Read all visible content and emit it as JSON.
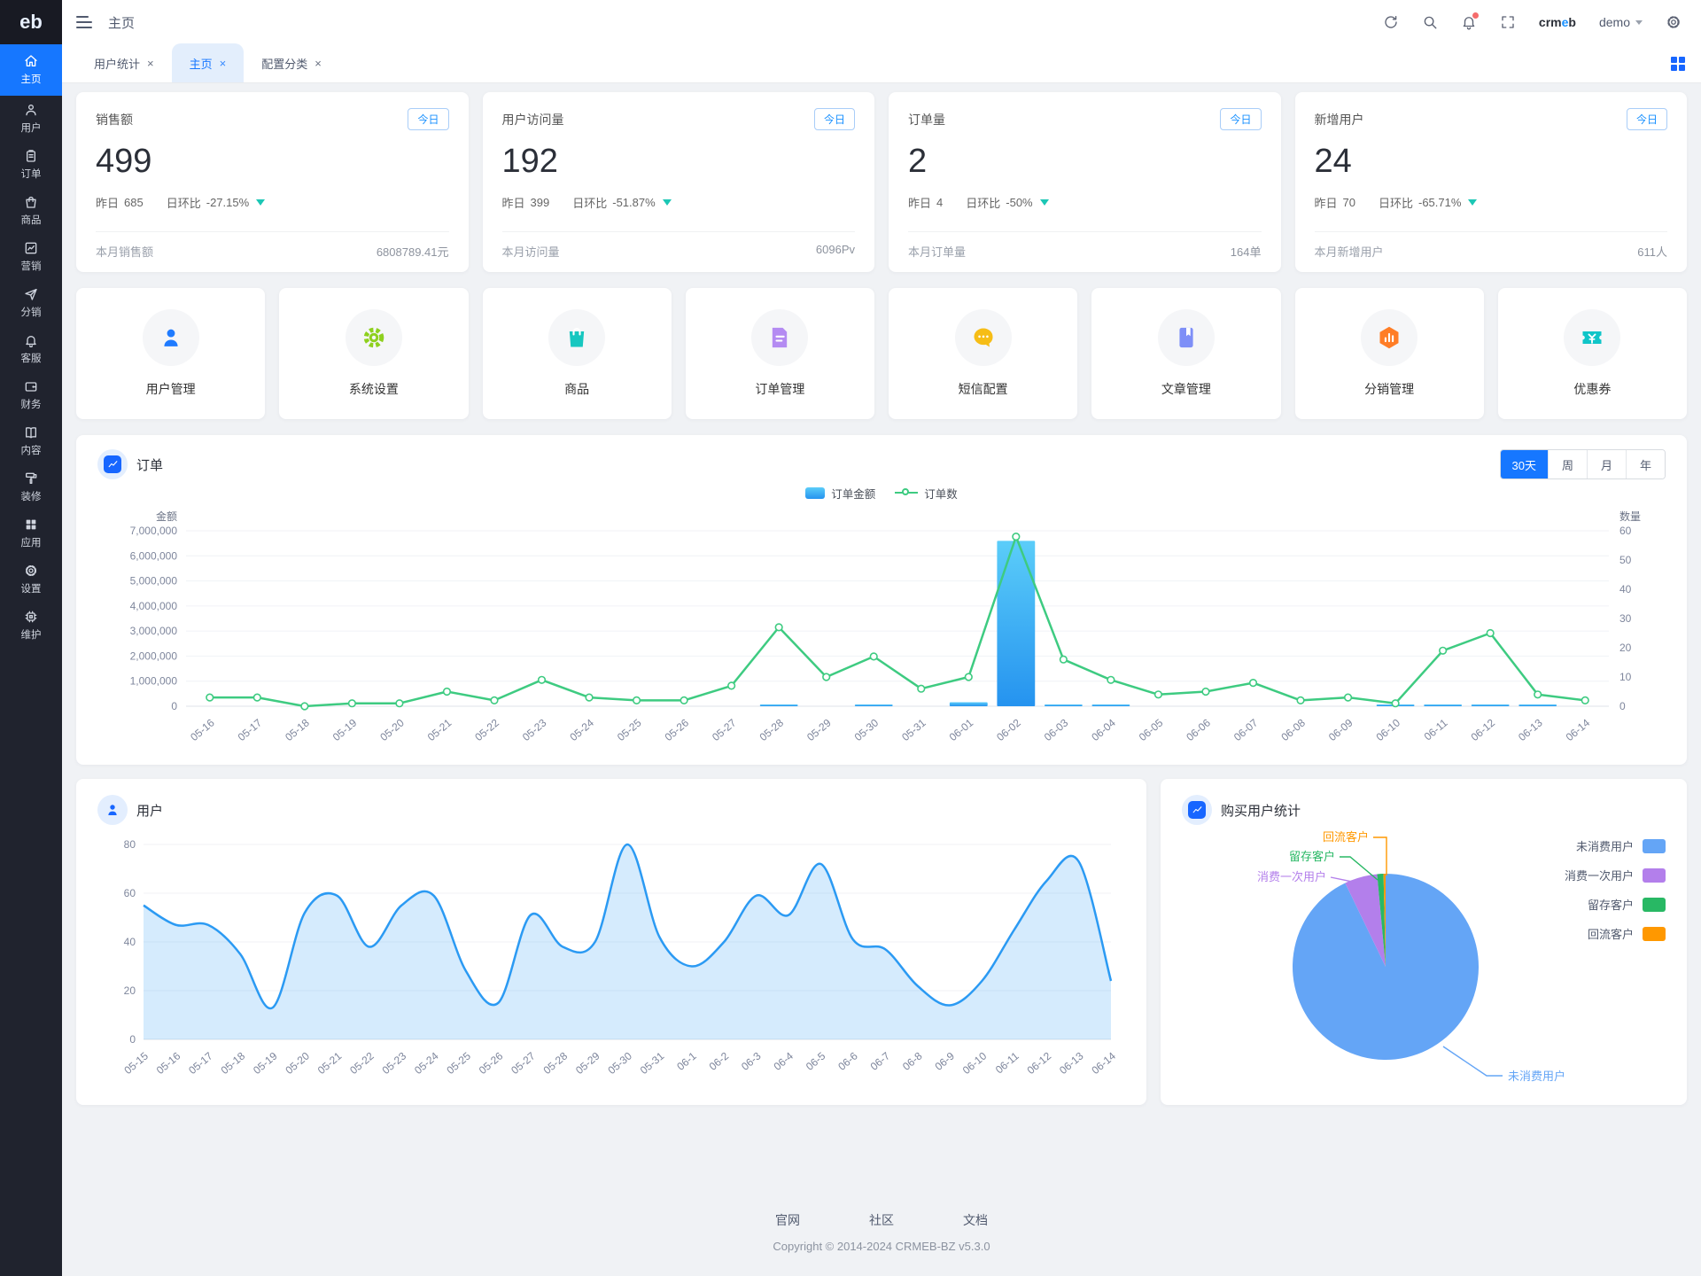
{
  "glyphs": {
    "close": "×"
  },
  "topbar": {
    "title": "主页",
    "brand_pre": "crm",
    "brand_mid": "e",
    "brand_post": "b",
    "user": "demo"
  },
  "sidebar": {
    "logo": "eb",
    "items": [
      {
        "label": "主页",
        "icon": "home-icon",
        "active": true
      },
      {
        "label": "用户",
        "icon": "user-icon"
      },
      {
        "label": "订单",
        "icon": "order-icon"
      },
      {
        "label": "商品",
        "icon": "goods-icon"
      },
      {
        "label": "营销",
        "icon": "marketing-icon"
      },
      {
        "label": "分销",
        "icon": "distribution-icon"
      },
      {
        "label": "客服",
        "icon": "service-icon"
      },
      {
        "label": "财务",
        "icon": "finance-icon"
      },
      {
        "label": "内容",
        "icon": "content-icon"
      },
      {
        "label": "装修",
        "icon": "decorate-icon"
      },
      {
        "label": "应用",
        "icon": "apps-icon"
      },
      {
        "label": "设置",
        "icon": "settings-icon"
      },
      {
        "label": "维护",
        "icon": "maintain-icon"
      }
    ]
  },
  "tabs": {
    "items": [
      {
        "label": "用户统计"
      },
      {
        "label": "主页",
        "active": true
      },
      {
        "label": "配置分类"
      }
    ]
  },
  "stat_cards": [
    {
      "title": "销售额",
      "badge": "今日",
      "value": "499",
      "yesterday_label": "昨日",
      "yesterday": "685",
      "ratio_label": "日环比",
      "ratio": "-27.15%",
      "month_label": "本月销售额",
      "month_value": "6808789.41元"
    },
    {
      "title": "用户访问量",
      "badge": "今日",
      "value": "192",
      "yesterday_label": "昨日",
      "yesterday": "399",
      "ratio_label": "日环比",
      "ratio": "-51.87%",
      "month_label": "本月访问量",
      "month_value": "6096Pv"
    },
    {
      "title": "订单量",
      "badge": "今日",
      "value": "2",
      "yesterday_label": "昨日",
      "yesterday": "4",
      "ratio_label": "日环比",
      "ratio": "-50%",
      "month_label": "本月订单量",
      "month_value": "164单"
    },
    {
      "title": "新增用户",
      "badge": "今日",
      "value": "24",
      "yesterday_label": "昨日",
      "yesterday": "70",
      "ratio_label": "日环比",
      "ratio": "-65.71%",
      "month_label": "本月新增用户",
      "month_value": "611人"
    }
  ],
  "quick_actions": [
    {
      "label": "用户管理",
      "icon": "user-manage-icon",
      "color": "#1f7bff"
    },
    {
      "label": "系统设置",
      "icon": "system-setting-icon",
      "color": "#8ed01e"
    },
    {
      "label": "商品",
      "icon": "product-icon",
      "color": "#17c7c0"
    },
    {
      "label": "订单管理",
      "icon": "order-manage-icon",
      "color": "#b48bf2"
    },
    {
      "label": "短信配置",
      "icon": "sms-config-icon",
      "color": "#f6bd16"
    },
    {
      "label": "文章管理",
      "icon": "article-manage-icon",
      "color": "#7e8ff7"
    },
    {
      "label": "分销管理",
      "icon": "distribution-manage-icon",
      "color": "#ff7d26"
    },
    {
      "label": "优惠券",
      "icon": "coupon-icon",
      "color": "#10c5c8"
    }
  ],
  "order_panel": {
    "ranges": [
      "30天",
      "周",
      "月",
      "年"
    ],
    "active_range": "30天"
  },
  "chart_data": [
    {
      "type": "bar",
      "title": "订单",
      "categories": [
        "05-16",
        "05-17",
        "05-18",
        "05-19",
        "05-20",
        "05-21",
        "05-22",
        "05-23",
        "05-24",
        "05-25",
        "05-26",
        "05-27",
        "05-28",
        "05-29",
        "05-30",
        "05-31",
        "06-01",
        "06-02",
        "06-03",
        "06-04",
        "06-05",
        "06-06",
        "06-07",
        "06-08",
        "06-09",
        "06-10",
        "06-11",
        "06-12",
        "06-13",
        "06-14"
      ],
      "series": [
        {
          "name": "订单金额",
          "type": "bar",
          "color": "#2e9bf2",
          "values": [
            0,
            0,
            0,
            0,
            0,
            0,
            0,
            0,
            0,
            0,
            0,
            0,
            20000,
            0,
            25000,
            0,
            160000,
            6600000,
            30000,
            15000,
            0,
            0,
            0,
            0,
            0,
            20000,
            30000,
            25000,
            15000,
            0
          ]
        },
        {
          "name": "订单数",
          "type": "line",
          "color": "#3ecb81",
          "values": [
            3,
            3,
            0,
            1,
            1,
            5,
            2,
            9,
            3,
            2,
            2,
            7,
            27,
            10,
            17,
            6,
            10,
            58,
            16,
            9,
            4,
            5,
            8,
            2,
            3,
            1,
            19,
            25,
            4,
            2
          ]
        }
      ],
      "ylabel_left": "金额",
      "ylabel_right": "数量",
      "ylim_left": [
        0,
        7000000
      ],
      "ylim_right": [
        0,
        60
      ],
      "grid": true,
      "legend_position": "top-center"
    },
    {
      "type": "area",
      "title": "用户",
      "categories": [
        "05-15",
        "05-16",
        "05-17",
        "05-18",
        "05-19",
        "05-20",
        "05-21",
        "05-22",
        "05-23",
        "05-24",
        "05-25",
        "05-26",
        "05-27",
        "05-28",
        "05-29",
        "05-30",
        "05-31",
        "06-1",
        "06-2",
        "06-3",
        "06-4",
        "06-5",
        "06-6",
        "06-7",
        "06-8",
        "06-9",
        "06-10",
        "06-11",
        "06-12",
        "06-13",
        "06-14"
      ],
      "values": [
        55,
        47,
        47,
        35,
        13,
        52,
        59,
        38,
        55,
        59,
        28,
        15,
        51,
        38,
        40,
        80,
        42,
        30,
        40,
        59,
        51,
        72,
        41,
        37,
        22,
        14,
        24,
        45,
        65,
        73,
        24
      ],
      "ylim": [
        0,
        80
      ],
      "color": "#2b9af3",
      "grid": true
    },
    {
      "type": "pie",
      "title": "购买用户统计",
      "labels": [
        "未消费用户",
        "消费一次用户",
        "留存客户",
        "回流客户"
      ],
      "values": [
        92.9,
        5.7,
        1.1,
        0.3
      ],
      "unit": "%",
      "colors": [
        "#64a5f6",
        "#b37feb",
        "#28b864",
        "#ff9800"
      ],
      "legend_position": "top-right"
    }
  ],
  "footer": {
    "links": [
      "官网",
      "社区",
      "文档"
    ],
    "copyright": "Copyright © 2014-2024 CRMEB-BZ v5.3.0"
  }
}
